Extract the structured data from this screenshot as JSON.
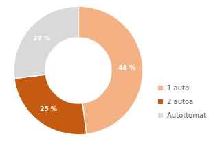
{
  "chart_data": {
    "type": "pie",
    "categories": [
      "1 auto",
      "2 autoa",
      "Autottomat"
    ],
    "values": [
      48,
      25,
      27
    ],
    "value_labels": [
      "48 %",
      "25 %",
      "27 %"
    ],
    "colors": [
      "#f4b183",
      "#c55a11",
      "#d9d9d9"
    ],
    "data_labels": true,
    "legend": "right"
  }
}
